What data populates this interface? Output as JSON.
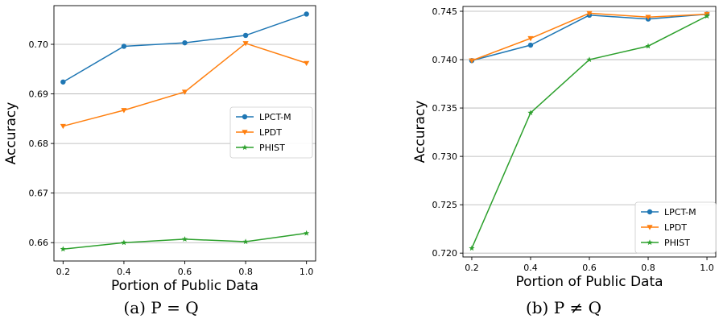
{
  "colors": {
    "LPCT-M": "#1f77b4",
    "LPDT": "#ff7f0e",
    "PHIST": "#2ca02c",
    "grid": "#b0b0b0"
  },
  "chart_data": [
    {
      "type": "line",
      "caption": "(a) P = Q",
      "xlabel": "Portion of Public Data",
      "ylabel": "Accuracy",
      "x": [
        0.2,
        0.4,
        0.6,
        0.8,
        1.0
      ],
      "x_ticks": [
        "0.2",
        "0.4",
        "0.6",
        "0.8",
        "1.0"
      ],
      "xlim": [
        0.17,
        1.03
      ],
      "ylim": [
        0.6563,
        0.7078
      ],
      "y_ticks": [
        0.66,
        0.67,
        0.68,
        0.69,
        0.7
      ],
      "y_tick_labels": [
        "0.66",
        "0.67",
        "0.68",
        "0.69",
        "0.70"
      ],
      "grid": "horizontal",
      "legend_position": "center-right",
      "series": [
        {
          "name": "LPCT-M",
          "marker": "circle",
          "values": [
            0.6924,
            0.6996,
            0.7003,
            0.7018,
            0.7061
          ]
        },
        {
          "name": "LPDT",
          "marker": "triangle",
          "values": [
            0.6835,
            0.6867,
            0.6904,
            0.7002,
            0.6962
          ]
        },
        {
          "name": "PHIST",
          "marker": "star",
          "values": [
            0.6587,
            0.66,
            0.6607,
            0.6602,
            0.6619
          ]
        }
      ]
    },
    {
      "type": "line",
      "caption": "(b) P ≠ Q",
      "xlabel": "Portion of Public Data",
      "ylabel": "Accuracy",
      "x": [
        0.2,
        0.4,
        0.6,
        0.8,
        1.0
      ],
      "x_ticks": [
        "0.2",
        "0.4",
        "0.6",
        "0.8",
        "1.0"
      ],
      "xlim": [
        0.17,
        1.03
      ],
      "ylim": [
        0.7196,
        0.7455
      ],
      "y_ticks": [
        0.72,
        0.725,
        0.73,
        0.735,
        0.74,
        0.745
      ],
      "y_tick_labels": [
        "0.720",
        "0.725",
        "0.730",
        "0.735",
        "0.740",
        "0.745"
      ],
      "grid": "horizontal",
      "legend_position": "lower-right",
      "series": [
        {
          "name": "LPCT-M",
          "marker": "circle",
          "values": [
            0.7399,
            0.7415,
            0.7446,
            0.7442,
            0.7447
          ]
        },
        {
          "name": "LPDT",
          "marker": "triangle",
          "values": [
            0.7399,
            0.7422,
            0.7448,
            0.7444,
            0.7447
          ]
        },
        {
          "name": "PHIST",
          "marker": "star",
          "values": [
            0.7205,
            0.7345,
            0.74,
            0.7414,
            0.7445
          ]
        }
      ]
    }
  ]
}
